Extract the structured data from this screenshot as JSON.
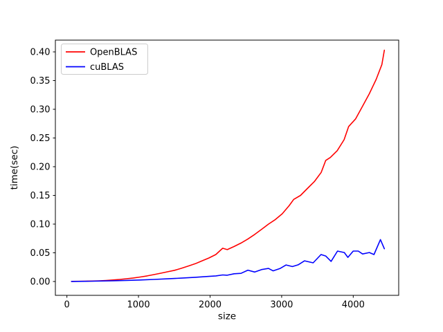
{
  "figure": {
    "background_color": "#ffffff",
    "frame_color": "#000000"
  },
  "chart_data": {
    "type": "line",
    "title": "",
    "xlabel": "size",
    "ylabel": "time(sec)",
    "xlim": [
      -161,
      4635
    ],
    "ylim": [
      -0.0241,
      0.4205
    ],
    "grid": false,
    "xticks": [
      0,
      1000,
      2000,
      3000,
      4000
    ],
    "xtick_labels": [
      "0",
      "1000",
      "2000",
      "3000",
      "4000"
    ],
    "yticks": [
      0.0,
      0.05,
      0.1,
      0.15,
      0.2,
      0.25,
      0.3,
      0.35,
      0.4
    ],
    "ytick_labels": [
      "0.00",
      "0.05",
      "0.10",
      "0.15",
      "0.20",
      "0.25",
      "0.30",
      "0.35",
      "0.40"
    ],
    "legend": {
      "position": "upper-left",
      "border_color": "#cccccc",
      "background_color": "#ffffff"
    },
    "series": [
      {
        "name": "OpenBLAS",
        "color": "#ff0000",
        "x": [
          64,
          160,
          256,
          352,
          448,
          544,
          640,
          736,
          832,
          928,
          1024,
          1120,
          1216,
          1312,
          1408,
          1504,
          1600,
          1696,
          1792,
          1888,
          1984,
          2080,
          2176,
          2240,
          2336,
          2432,
          2528,
          2624,
          2720,
          2816,
          2912,
          3008,
          3104,
          3168,
          3264,
          3360,
          3456,
          3552,
          3616,
          3680,
          3776,
          3872,
          3936,
          4032,
          4128,
          4224,
          4320,
          4400,
          4435
        ],
        "y": [
          0.0002,
          0.0003,
          0.0005,
          0.0008,
          0.0012,
          0.0018,
          0.0026,
          0.0036,
          0.0048,
          0.0062,
          0.0078,
          0.0098,
          0.012,
          0.0145,
          0.017,
          0.0195,
          0.023,
          0.027,
          0.031,
          0.036,
          0.041,
          0.047,
          0.058,
          0.0555,
          0.061,
          0.067,
          0.074,
          0.082,
          0.091,
          0.1,
          0.108,
          0.118,
          0.132,
          0.143,
          0.15,
          0.162,
          0.174,
          0.19,
          0.211,
          0.216,
          0.228,
          0.247,
          0.27,
          0.283,
          0.305,
          0.327,
          0.352,
          0.378,
          0.403
        ]
      },
      {
        "name": "cuBLAS",
        "color": "#0000ff",
        "x": [
          64,
          256,
          448,
          640,
          832,
          1024,
          1216,
          1408,
          1600,
          1792,
          1984,
          2080,
          2176,
          2240,
          2336,
          2432,
          2528,
          2624,
          2720,
          2816,
          2880,
          2976,
          3062,
          3150,
          3230,
          3320,
          3440,
          3550,
          3615,
          3690,
          3780,
          3875,
          3925,
          4000,
          4070,
          4130,
          4225,
          4290,
          4380,
          4435
        ],
        "y": [
          0.0001,
          0.0004,
          0.0008,
          0.0013,
          0.0019,
          0.0027,
          0.0036,
          0.0047,
          0.0059,
          0.0073,
          0.0089,
          0.0098,
          0.0115,
          0.011,
          0.0135,
          0.0142,
          0.0198,
          0.0165,
          0.0208,
          0.0228,
          0.0185,
          0.0225,
          0.0288,
          0.026,
          0.029,
          0.036,
          0.0325,
          0.047,
          0.0445,
          0.035,
          0.053,
          0.0505,
          0.042,
          0.053,
          0.053,
          0.048,
          0.0505,
          0.047,
          0.073,
          0.057
        ]
      }
    ]
  }
}
